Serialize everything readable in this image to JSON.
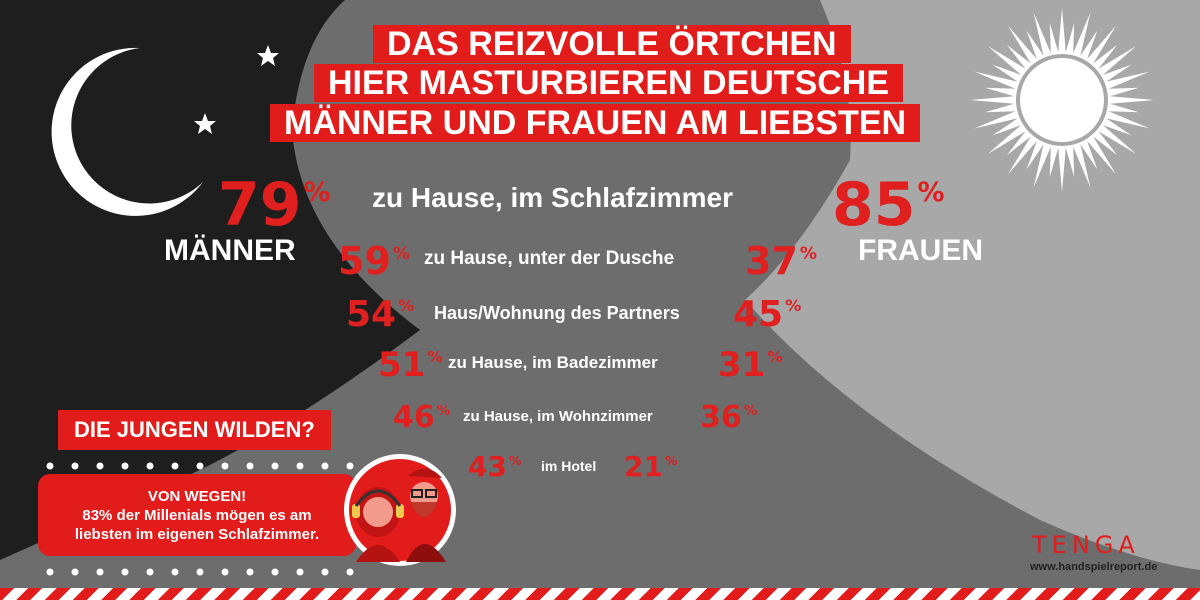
{
  "headline": {
    "line1": "Das reizvolle Örtchen",
    "line2": "Hier masturbieren Deutsche",
    "line3": "Männer und Frauen am liebsten"
  },
  "men": {
    "label": "MÄNNER"
  },
  "women": {
    "label": "FRAUEN"
  },
  "percent_sign": "%",
  "rows": [
    {
      "location": "zu Hause, im Schlafzimmer",
      "men": "79",
      "women": "85"
    },
    {
      "location": "zu Hause, unter der Dusche",
      "men": "59",
      "women": "37"
    },
    {
      "location": "Haus/Wohnung des Partners",
      "men": "54",
      "women": "45"
    },
    {
      "location": "zu Hause, im Badezimmer",
      "men": "51",
      "women": "31"
    },
    {
      "location": "zu Hause, im Wohnzimmer",
      "men": "46",
      "women": "36"
    },
    {
      "location": "im Hotel",
      "men": "43",
      "women": "21"
    }
  ],
  "callout": {
    "title": "DIE JUNGEN WILDEN?",
    "line1": "VON WEGEN!",
    "line2": "83% der Millenials mögen es am",
    "line3": "liebsten im eigenen Schlafzimmer."
  },
  "brand": {
    "logo": "TENGA",
    "website": "www.handspielreport.de"
  },
  "colors": {
    "accent_red": "#e21b1b",
    "night": "#1e1e1e",
    "middle": "#6d6d6e",
    "day": "#a8a8a9"
  },
  "icons": [
    "crescent-moon-icon",
    "star-icon",
    "sun-icon",
    "couple-avatar-icon"
  ]
}
